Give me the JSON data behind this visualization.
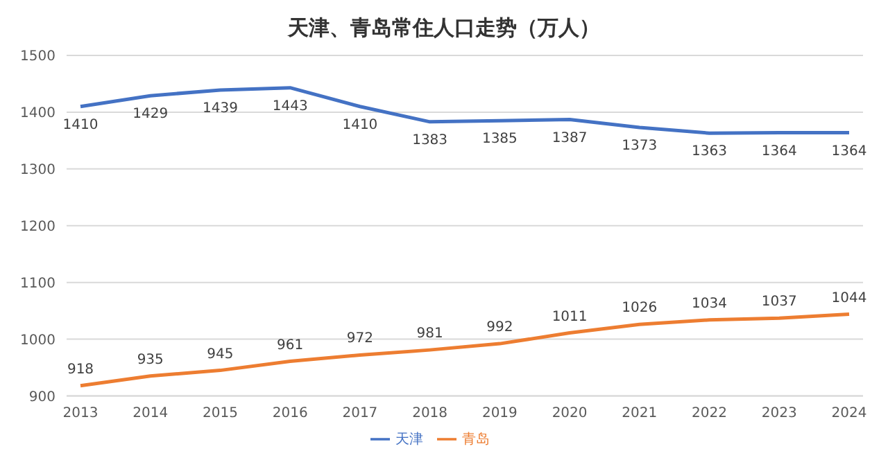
{
  "chart_data": {
    "type": "line",
    "title": "天津、青岛常住人口走势（万人）",
    "categories": [
      "2013",
      "2014",
      "2015",
      "2016",
      "2017",
      "2018",
      "2019",
      "2020",
      "2021",
      "2022",
      "2023",
      "2024"
    ],
    "series": [
      {
        "name": "天津",
        "color": "#4472c4",
        "values": [
          1410,
          1429,
          1439,
          1443,
          1410,
          1383,
          1385,
          1387,
          1373,
          1363,
          1364,
          1364
        ]
      },
      {
        "name": "青岛",
        "color": "#ed7d31",
        "values": [
          918,
          935,
          945,
          961,
          972,
          981,
          992,
          1011,
          1026,
          1034,
          1037,
          1044
        ]
      }
    ],
    "ylim": [
      900,
      1500
    ],
    "yticks": [
      900,
      1000,
      1100,
      1200,
      1300,
      1400,
      1500
    ],
    "grid": "y",
    "legend": "bottom",
    "marker": "none",
    "line_style": "solid",
    "data_labels": true
  }
}
